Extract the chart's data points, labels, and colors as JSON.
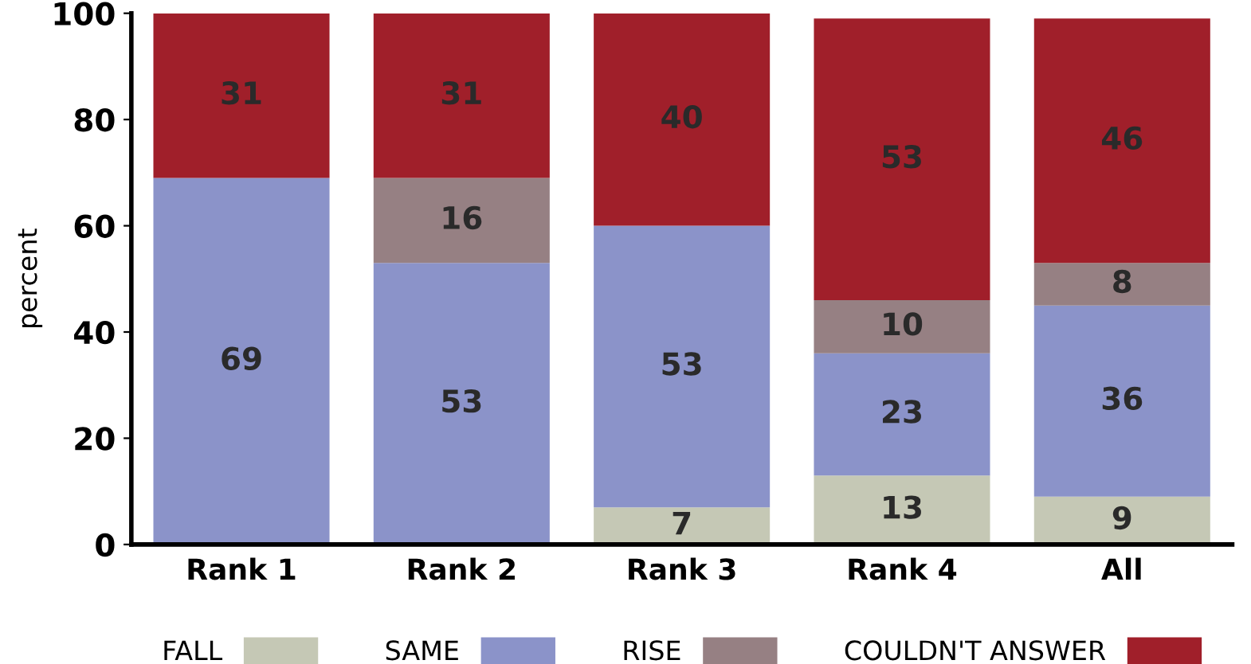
{
  "chart_data": {
    "type": "bar",
    "stacked": true,
    "ylabel": "percent",
    "categories": [
      "Rank 1",
      "Rank 2",
      "Rank 3",
      "Rank 4",
      "All"
    ],
    "series": [
      {
        "name": "FALL",
        "color": "#c5c8b5",
        "values": [
          0,
          0,
          7,
          13,
          9
        ],
        "value_labels": [
          null,
          null,
          "7",
          "13",
          "9"
        ]
      },
      {
        "name": "SAME",
        "color": "#8b93c9",
        "values": [
          69,
          53,
          53,
          23,
          36
        ],
        "value_labels": [
          "69",
          "53",
          "53",
          "23",
          "36"
        ]
      },
      {
        "name": "RISE",
        "color": "#968083",
        "values": [
          0,
          16,
          0,
          10,
          8
        ],
        "value_labels": [
          null,
          "16",
          null,
          "10",
          "8"
        ]
      },
      {
        "name": "COULDN'T ANSWER",
        "color": "#a01f2a",
        "values": [
          31,
          31,
          40,
          53,
          46
        ],
        "value_labels": [
          "31",
          "31",
          "40",
          "53",
          "46"
        ]
      }
    ],
    "ylim": [
      0,
      100
    ],
    "yticks": [
      0,
      20,
      40,
      60,
      80,
      100
    ],
    "grid": false,
    "legend": "bottom"
  }
}
